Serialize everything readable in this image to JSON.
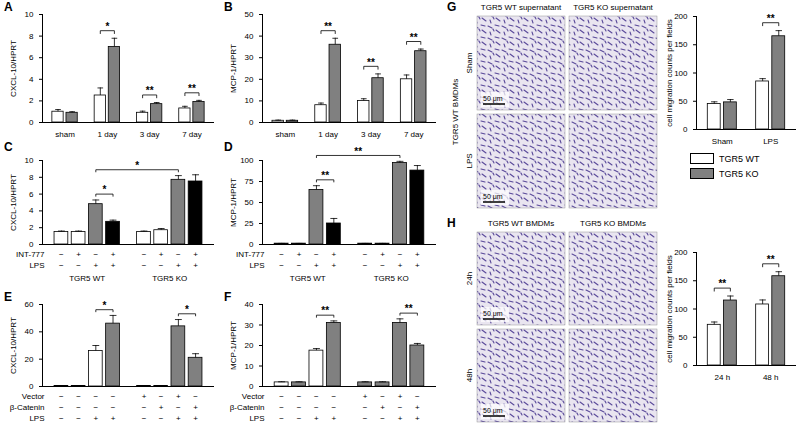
{
  "chart_data": [
    {
      "type": "bar",
      "panel": "A",
      "ylabel": "CXCL-10/HPRT",
      "categories": [
        "sham",
        "1 day",
        "3 day",
        "7 day"
      ],
      "ylim": [
        0,
        10
      ],
      "yticks": [
        0,
        2,
        4,
        6,
        8,
        10
      ],
      "series": [
        {
          "name": "TGR5 WT",
          "color": "#ffffff",
          "values": [
            1.0,
            2.5,
            0.9,
            1.3
          ],
          "errors": [
            0.2,
            0.7,
            0.15,
            0.2
          ]
        },
        {
          "name": "TGR5 KO",
          "color": "#808080",
          "values": [
            0.9,
            7.0,
            1.7,
            1.9
          ],
          "errors": [
            0.1,
            0.8,
            0.15,
            0.15
          ]
        }
      ],
      "annotations": [
        {
          "category": "1 day",
          "label": "*"
        },
        {
          "category": "3 day",
          "label": "**"
        },
        {
          "category": "7 day",
          "label": "**"
        }
      ]
    },
    {
      "type": "bar",
      "panel": "B",
      "ylabel": "MCP-1/HPRT",
      "categories": [
        "sham",
        "1 day",
        "3 day",
        "7 day"
      ],
      "ylim": [
        0,
        50
      ],
      "yticks": [
        0,
        10,
        20,
        30,
        40,
        50
      ],
      "series": [
        {
          "name": "TGR5 WT",
          "color": "#ffffff",
          "values": [
            0.8,
            8,
            10,
            20
          ],
          "errors": [
            0.3,
            1,
            1,
            2
          ]
        },
        {
          "name": "TGR5 KO",
          "color": "#808080",
          "values": [
            0.8,
            36,
            20.5,
            33
          ],
          "errors": [
            0.3,
            3,
            2,
            1
          ]
        }
      ],
      "annotations": [
        {
          "category": "1 day",
          "label": "**"
        },
        {
          "category": "3 day",
          "label": "**"
        },
        {
          "category": "7 day",
          "label": "**"
        }
      ]
    },
    {
      "type": "bar",
      "panel": "C",
      "ylabel": "CXCL-10/HPRT",
      "ylim": [
        0,
        10
      ],
      "yticks": [
        0,
        2,
        4,
        6,
        8,
        10
      ],
      "values": [
        1.5,
        1.5,
        4.8,
        2.7,
        1.5,
        1.7,
        7.7,
        7.5
      ],
      "errors": [
        0.1,
        0.1,
        0.5,
        0.2,
        0.1,
        0.2,
        0.5,
        0.8
      ],
      "colors": [
        "#ffffff",
        "#ffffff",
        "#808080",
        "#000000",
        "#ffffff",
        "#ffffff",
        "#808080",
        "#000000"
      ],
      "conditions": [
        {
          "name": "INT-777",
          "marks": [
            "−",
            "+",
            "−",
            "+",
            "−",
            "+",
            "−",
            "+"
          ]
        },
        {
          "name": "LPS",
          "marks": [
            "−",
            "−",
            "+",
            "+",
            "−",
            "−",
            "+",
            "+"
          ]
        }
      ],
      "groups": [
        {
          "name": "TGR5 WT",
          "from": 0,
          "to": 3
        },
        {
          "name": "TGR5 KO",
          "from": 4,
          "to": 7
        }
      ],
      "annotations": [
        {
          "from": 2,
          "to": 3,
          "label": "*"
        },
        {
          "from": 2,
          "to": 6,
          "label": "*"
        }
      ]
    },
    {
      "type": "bar",
      "panel": "D",
      "ylabel": "MCP-1/HPRT",
      "ylim": [
        0,
        100
      ],
      "yticks": [
        0,
        25,
        50,
        75,
        100
      ],
      "values": [
        1,
        1,
        65,
        25,
        1,
        1,
        97,
        88
      ],
      "errors": [
        0.3,
        0.3,
        5,
        6,
        0.3,
        0.3,
        2,
        6
      ],
      "colors": [
        "#ffffff",
        "#ffffff",
        "#808080",
        "#000000",
        "#ffffff",
        "#ffffff",
        "#808080",
        "#000000"
      ],
      "conditions": [
        {
          "name": "INT-777",
          "marks": [
            "−",
            "+",
            "−",
            "+",
            "−",
            "+",
            "−",
            "+"
          ]
        },
        {
          "name": "LPS",
          "marks": [
            "−",
            "−",
            "+",
            "+",
            "−",
            "−",
            "+",
            "+"
          ]
        }
      ],
      "groups": [
        {
          "name": "TGR5 WT",
          "from": 0,
          "to": 3
        },
        {
          "name": "TGR5 KO",
          "from": 4,
          "to": 7
        }
      ],
      "annotations": [
        {
          "from": 2,
          "to": 3,
          "label": "**"
        },
        {
          "from": 2,
          "to": 6,
          "label": "**"
        }
      ]
    },
    {
      "type": "bar",
      "panel": "E",
      "ylabel": "CXCL-10/HPRT",
      "ylim": [
        0,
        60
      ],
      "yticks": [
        0,
        20,
        40,
        60
      ],
      "values": [
        0.3,
        0.3,
        26,
        46,
        0.3,
        0.3,
        44,
        21
      ],
      "errors": [
        0.1,
        0.1,
        4,
        6,
        0.1,
        0.1,
        5,
        3
      ],
      "colors": [
        "#ffffff",
        "#808080",
        "#ffffff",
        "#808080",
        "#808080",
        "#808080",
        "#808080",
        "#808080"
      ],
      "conditions": [
        {
          "name": "Vector",
          "marks": [
            "−",
            "−",
            "−",
            "−",
            "+",
            "−",
            "+",
            "−"
          ]
        },
        {
          "name": "β-Catenin",
          "marks": [
            "−",
            "−",
            "−",
            "−",
            "−",
            "+",
            "−",
            "+"
          ]
        },
        {
          "name": "LPS",
          "marks": [
            "−",
            "−",
            "+",
            "+",
            "−",
            "−",
            "+",
            "+"
          ]
        }
      ],
      "annotations": [
        {
          "from": 2,
          "to": 3,
          "label": "*"
        },
        {
          "from": 6,
          "to": 7,
          "label": "*"
        }
      ]
    },
    {
      "type": "bar",
      "panel": "F",
      "ylabel": "MCP-1/HPRT",
      "ylim": [
        0,
        40
      ],
      "yticks": [
        0,
        10,
        20,
        30,
        40
      ],
      "values": [
        2,
        2,
        17.5,
        31,
        2,
        2,
        31,
        20
      ],
      "errors": [
        0.3,
        0.3,
        1,
        1,
        0.3,
        0.3,
        2,
        1
      ],
      "colors": [
        "#ffffff",
        "#808080",
        "#ffffff",
        "#808080",
        "#808080",
        "#808080",
        "#808080",
        "#808080"
      ],
      "conditions": [
        {
          "name": "Vector",
          "marks": [
            "−",
            "−",
            "−",
            "−",
            "+",
            "−",
            "+",
            "−"
          ]
        },
        {
          "name": "β-Catenin",
          "marks": [
            "−",
            "−",
            "−",
            "−",
            "−",
            "+",
            "−",
            "+"
          ]
        },
        {
          "name": "LPS",
          "marks": [
            "−",
            "−",
            "+",
            "+",
            "−",
            "−",
            "+",
            "+"
          ]
        }
      ],
      "annotations": [
        {
          "from": 2,
          "to": 3,
          "label": "**"
        },
        {
          "from": 6,
          "to": 7,
          "label": "**"
        }
      ]
    },
    {
      "type": "bar",
      "ylabel": "cell migration counts per fields",
      "categories": [
        "Sham",
        "LPS"
      ],
      "ylim": [
        0,
        200
      ],
      "yticks": [
        0,
        50,
        100,
        150,
        200
      ],
      "legend": "right",
      "series": [
        {
          "name": "TGR5 WT",
          "color": "#ffffff",
          "values": [
            45,
            85
          ],
          "errors": [
            4,
            5
          ]
        },
        {
          "name": "TGR5 KO",
          "color": "#808080",
          "values": [
            48,
            165
          ],
          "errors": [
            5,
            10
          ]
        }
      ],
      "annotations": [
        {
          "category": "LPS",
          "label": "**"
        }
      ]
    },
    {
      "type": "bar",
      "ylabel": "cell migration counts per fields",
      "categories": [
        "24 h",
        "48 h"
      ],
      "ylim": [
        0,
        200
      ],
      "yticks": [
        0,
        50,
        100,
        150,
        200
      ],
      "series": [
        {
          "name": "TGR5 WT",
          "color": "#ffffff",
          "values": [
            72,
            108
          ],
          "errors": [
            5,
            8
          ]
        },
        {
          "name": "TGR5 KO",
          "color": "#808080",
          "values": [
            115,
            158
          ],
          "errors": [
            8,
            8
          ]
        }
      ],
      "annotations": [
        {
          "category": "24 h",
          "label": "**"
        },
        {
          "category": "48 h",
          "label": "**"
        }
      ]
    }
  ],
  "micrographs": [
    {
      "panel": "G",
      "columns": [
        "TGR5 WT supernatant",
        "TGR5 KO supernatant"
      ],
      "rows": [
        "Sham",
        "LPS"
      ],
      "side_label": "TGR5 WT BMDMs",
      "scale_bar": "50 μm"
    },
    {
      "panel": "H",
      "columns": [
        "TGR5 WT BMDMs",
        "TGR5 KO BMDMs"
      ],
      "rows": [
        "24h",
        "48h"
      ],
      "scale_bar": "50 μm"
    }
  ]
}
